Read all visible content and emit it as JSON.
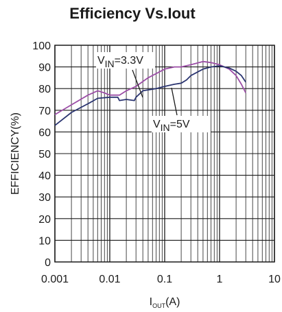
{
  "chart_data": {
    "type": "line",
    "title": "Efficiency Vs.Iout",
    "xlabel": {
      "main": "I",
      "sub": "OUT",
      "unit": "(A)"
    },
    "ylabel": "EFFICIENCY(%)",
    "x_scale": "log",
    "xlim": [
      0.001,
      10
    ],
    "ylim": [
      0,
      100
    ],
    "grid": true,
    "x_ticks": [
      "0.001",
      "0.01",
      "0.1",
      "1",
      "10"
    ],
    "y_ticks": [
      "0",
      "10",
      "20",
      "30",
      "40",
      "50",
      "60",
      "70",
      "80",
      "90",
      "100"
    ],
    "series": [
      {
        "name": "VIN=3.3V",
        "color": "#9b4da6",
        "x": [
          0.001,
          0.002,
          0.004,
          0.006,
          0.008,
          0.01,
          0.015,
          0.02,
          0.03,
          0.05,
          0.1,
          0.15,
          0.2,
          0.3,
          0.5,
          0.7,
          1,
          1.5,
          2,
          2.5,
          3
        ],
        "y": [
          68,
          72.5,
          77,
          79,
          78,
          77,
          77,
          79,
          81,
          85,
          89,
          90,
          90,
          91,
          92.5,
          92,
          91,
          89,
          86,
          82,
          78
        ]
      },
      {
        "name": "VIN=5V",
        "color": "#2a3470",
        "x": [
          0.001,
          0.002,
          0.004,
          0.006,
          0.01,
          0.014,
          0.015,
          0.02,
          0.028,
          0.03,
          0.04,
          0.07,
          0.1,
          0.15,
          0.2,
          0.25,
          0.3,
          0.5,
          0.7,
          1,
          1.5,
          2,
          2.5,
          3
        ],
        "y": [
          63,
          69,
          73,
          75.5,
          76,
          76,
          74.5,
          75,
          74.5,
          76,
          79,
          80,
          81,
          82,
          82.5,
          84,
          86,
          89,
          90,
          90.5,
          89.5,
          88,
          86,
          83
        ]
      }
    ],
    "annotations": [
      {
        "label": "VIN=3.3V",
        "main": "V",
        "sub": "IN",
        "value": "=3.3V",
        "series": 0
      },
      {
        "label": "VIN=5V",
        "main": "V",
        "sub": "IN",
        "value": "=5V",
        "series": 1
      }
    ]
  }
}
